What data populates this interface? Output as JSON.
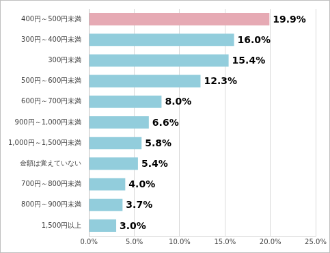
{
  "chart_data": {
    "type": "bar",
    "orientation": "horizontal",
    "categories": [
      "400円～500円未満",
      "300円～400円未満",
      "300円未満",
      "500円～600円未満",
      "600円～700円未満",
      "900円～1,000円未満",
      "1,000円～1,500円未満",
      "金額は覚えていない",
      "700円～800円未満",
      "800円～900円未満",
      "1,500円以上"
    ],
    "values": [
      19.9,
      16.0,
      15.4,
      12.3,
      8.0,
      6.6,
      5.8,
      5.4,
      4.0,
      3.7,
      3.0
    ],
    "value_labels": [
      "19.9%",
      "16.0%",
      "15.4%",
      "12.3%",
      "8.0%",
      "6.6%",
      "5.8%",
      "5.4%",
      "4.0%",
      "3.7%",
      "3.0%"
    ],
    "colors": [
      "#e6aab4",
      "#92cddc",
      "#92cddc",
      "#92cddc",
      "#92cddc",
      "#92cddc",
      "#92cddc",
      "#92cddc",
      "#92cddc",
      "#92cddc",
      "#92cddc"
    ],
    "xlim": [
      0,
      25
    ],
    "xticks": [
      {
        "value": 0,
        "label": "0.0%"
      },
      {
        "value": 5,
        "label": "5.0%"
      },
      {
        "value": 10,
        "label": "10.0%"
      },
      {
        "value": 15,
        "label": "15.0%"
      },
      {
        "value": 20,
        "label": "20.0%"
      },
      {
        "value": 25,
        "label": "25.0%"
      }
    ],
    "grid": true,
    "data_labels": true
  }
}
